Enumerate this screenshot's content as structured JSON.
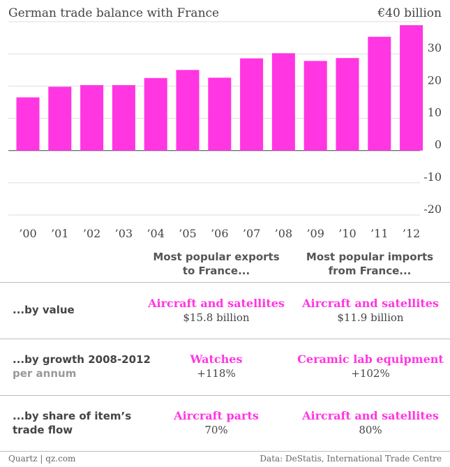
{
  "chart_data": {
    "type": "bar",
    "title": "German trade balance with France",
    "ymax_label": "€40 billion",
    "categories": [
      "’00",
      "’01",
      "’02",
      "’03",
      "’04",
      "’05",
      "’06",
      "’07",
      "’08",
      "’09",
      "’10",
      "’11",
      "’12"
    ],
    "values": [
      16.5,
      19.8,
      20.3,
      20.3,
      22.5,
      25.0,
      22.6,
      28.6,
      30.2,
      27.8,
      28.7,
      35.3,
      38.9
    ],
    "ylim": [
      -20,
      40
    ],
    "yticks": [
      -20,
      -10,
      0,
      10,
      20,
      30,
      40
    ],
    "ytick_labels": [
      "-20",
      "-10",
      "0",
      "10",
      "20",
      "30"
    ],
    "bar_color": "#ff36e1"
  },
  "table": {
    "headers": {
      "exports": "Most popular exports to France...",
      "imports": "Most popular imports from France..."
    },
    "rows": [
      {
        "label": "...by value",
        "sublabel": "",
        "export_item": "Aircraft and satellites",
        "export_value": "$15.8 billion",
        "import_item": "Aircraft and satellites",
        "import_value": "$11.9 billion"
      },
      {
        "label": "...by growth 2008-2012",
        "sublabel": "per annum",
        "export_item": "Watches",
        "export_value": "+118%",
        "import_item": "Ceramic lab equipment",
        "import_value": "+102%"
      },
      {
        "label": "...by share of item’s",
        "sublabel": "trade flow",
        "export_item": "Aircraft parts",
        "export_value": "70%",
        "import_item": "Aircraft and satellites",
        "import_value": "80%"
      }
    ]
  },
  "footer": {
    "left": "Quartz | qz.com",
    "right": "Data: DeStatis, International Trade Centre"
  },
  "colors": {
    "accent": "#ff36e1",
    "text": "#444444"
  }
}
